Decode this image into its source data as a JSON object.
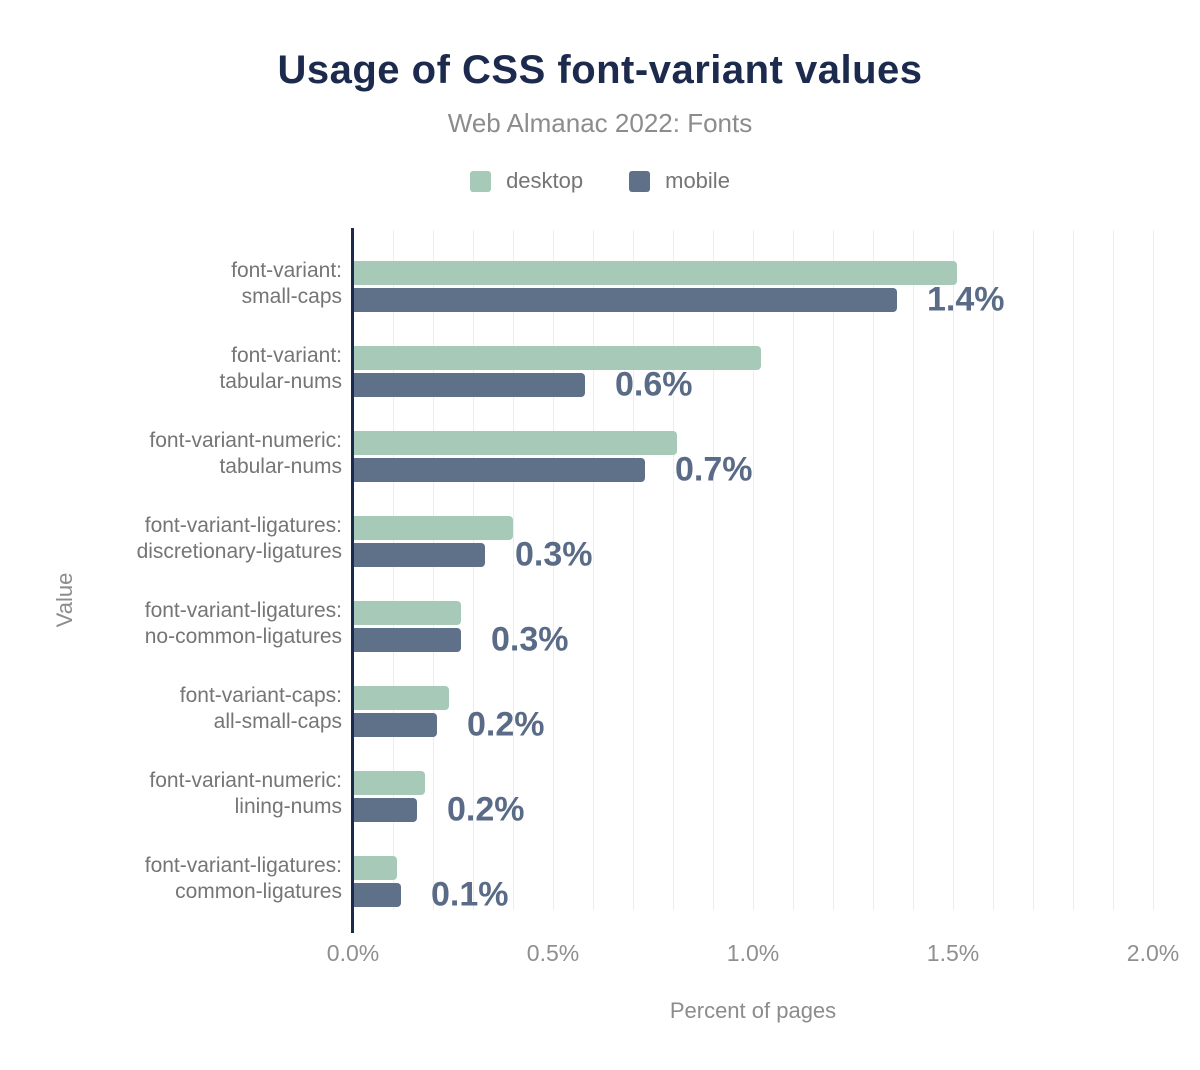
{
  "header": {
    "title": "Usage of CSS font-variant values",
    "subtitle": "Web Almanac 2022: Fonts"
  },
  "legend": [
    {
      "label": "desktop",
      "color": "#a6c9b8"
    },
    {
      "label": "mobile",
      "color": "#5f7089"
    }
  ],
  "colors": {
    "title_text": "#1c2a4d",
    "axis_line": "#1c2a4d",
    "desktop_bar": "#a6c9b8",
    "mobile_bar": "#5f7089",
    "annotation_text": "#5a6b87",
    "gridline": "#ededed",
    "muted_text": "#8c8c8c",
    "category_text": "#757575"
  },
  "chart_data": {
    "type": "bar",
    "orientation": "horizontal",
    "title": "Usage of CSS font-variant values",
    "subtitle": "Web Almanac 2022: Fonts",
    "xlabel": "Percent of pages",
    "ylabel": "Value",
    "xlim": [
      0,
      2.0
    ],
    "gridline_step": 0.1,
    "grid": true,
    "legend_position": "top",
    "x_ticks": [
      {
        "value": 0.0,
        "label": "0.0%"
      },
      {
        "value": 0.5,
        "label": "0.5%"
      },
      {
        "value": 1.0,
        "label": "1.0%"
      },
      {
        "value": 1.5,
        "label": "1.5%"
      },
      {
        "value": 2.0,
        "label": "2.0%"
      }
    ],
    "categories": [
      [
        "font-variant:",
        "small-caps"
      ],
      [
        "font-variant:",
        "tabular-nums"
      ],
      [
        "font-variant-numeric:",
        "tabular-nums"
      ],
      [
        "font-variant-ligatures:",
        "discretionary-ligatures"
      ],
      [
        "font-variant-ligatures:",
        "no-common-ligatures"
      ],
      [
        "font-variant-caps:",
        "all-small-caps"
      ],
      [
        "font-variant-numeric:",
        "lining-nums"
      ],
      [
        "font-variant-ligatures:",
        "common-ligatures"
      ]
    ],
    "series": [
      {
        "name": "desktop",
        "values": [
          1.51,
          1.02,
          0.81,
          0.4,
          0.27,
          0.24,
          0.18,
          0.11
        ]
      },
      {
        "name": "mobile",
        "values": [
          1.36,
          0.58,
          0.73,
          0.33,
          0.27,
          0.21,
          0.16,
          0.12
        ]
      }
    ],
    "annotations": [
      "1.4%",
      "0.6%",
      "0.7%",
      "0.3%",
      "0.3%",
      "0.2%",
      "0.2%",
      "0.1%"
    ]
  }
}
